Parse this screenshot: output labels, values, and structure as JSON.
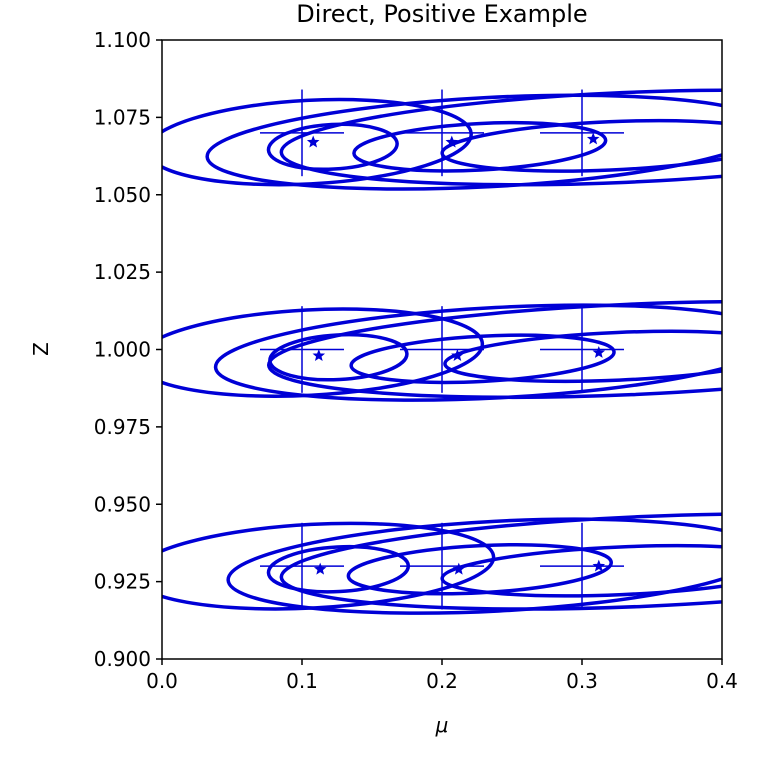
{
  "chart_data": {
    "type": "scatter",
    "title": "Direct, Positive Example",
    "xlabel": "μ",
    "ylabel": "Z",
    "xlim": [
      0.0,
      0.4
    ],
    "ylim": [
      0.9,
      1.1
    ],
    "xticks": [
      "0.0",
      "0.1",
      "0.2",
      "0.3",
      "0.4"
    ],
    "xtick_values": [
      0.0,
      0.1,
      0.2,
      0.3,
      0.4
    ],
    "yticks": [
      "0.900",
      "0.925",
      "0.950",
      "0.975",
      "1.000",
      "1.025",
      "1.050",
      "1.075",
      "1.100"
    ],
    "ytick_values": [
      0.9,
      0.925,
      0.95,
      0.975,
      1.0,
      1.025,
      1.05,
      1.075,
      1.1
    ],
    "grid": false,
    "color": "#0000d6",
    "crosshairs": {
      "centers": [
        {
          "x": 0.1,
          "y": 1.07
        },
        {
          "x": 0.2,
          "y": 1.07
        },
        {
          "x": 0.3,
          "y": 1.07
        },
        {
          "x": 0.1,
          "y": 1.0
        },
        {
          "x": 0.2,
          "y": 1.0
        },
        {
          "x": 0.3,
          "y": 1.0
        },
        {
          "x": 0.1,
          "y": 0.93
        },
        {
          "x": 0.2,
          "y": 0.93
        },
        {
          "x": 0.3,
          "y": 0.93
        }
      ],
      "x_half_width": 0.03,
      "y_half_height": 0.014
    },
    "estimates": [
      {
        "x": 0.108,
        "y": 1.067
      },
      {
        "x": 0.207,
        "y": 1.067
      },
      {
        "x": 0.308,
        "y": 1.068
      },
      {
        "x": 0.112,
        "y": 0.998
      },
      {
        "x": 0.211,
        "y": 0.998
      },
      {
        "x": 0.312,
        "y": 0.999
      },
      {
        "x": 0.113,
        "y": 0.929
      },
      {
        "x": 0.212,
        "y": 0.929
      },
      {
        "x": 0.312,
        "y": 0.93
      }
    ],
    "confidence_ellipses": [
      {
        "cx": 0.122,
        "cy": 1.0655,
        "rx": 0.046,
        "ry": 0.0072,
        "angle_deg": -3
      },
      {
        "cx": 0.105,
        "cy": 1.067,
        "rx": 0.116,
        "ry": 0.0135,
        "angle_deg": -3
      },
      {
        "cx": 0.227,
        "cy": 1.0655,
        "rx": 0.09,
        "ry": 0.0075,
        "angle_deg": -3
      },
      {
        "cx": 0.233,
        "cy": 1.067,
        "rx": 0.201,
        "ry": 0.0144,
        "angle_deg": -3
      },
      {
        "cx": 0.32,
        "cy": 1.0658,
        "rx": 0.12,
        "ry": 0.0078,
        "angle_deg": -2.5
      },
      {
        "cx": 0.33,
        "cy": 1.0685,
        "rx": 0.245,
        "ry": 0.0145,
        "angle_deg": -2.5
      },
      {
        "cx": 0.126,
        "cy": 0.9975,
        "rx": 0.049,
        "ry": 0.0072,
        "angle_deg": -3
      },
      {
        "cx": 0.105,
        "cy": 0.999,
        "rx": 0.124,
        "ry": 0.0138,
        "angle_deg": -3
      },
      {
        "cx": 0.229,
        "cy": 0.997,
        "rx": 0.094,
        "ry": 0.0073,
        "angle_deg": -3
      },
      {
        "cx": 0.24,
        "cy": 0.999,
        "rx": 0.202,
        "ry": 0.0146,
        "angle_deg": -3
      },
      {
        "cx": 0.326,
        "cy": 0.9978,
        "rx": 0.124,
        "ry": 0.0077,
        "angle_deg": -2.5
      },
      {
        "cx": 0.334,
        "cy": 1.0,
        "rx": 0.258,
        "ry": 0.0146,
        "angle_deg": -2.5
      },
      {
        "cx": 0.126,
        "cy": 0.929,
        "rx": 0.05,
        "ry": 0.0072,
        "angle_deg": -3
      },
      {
        "cx": 0.108,
        "cy": 0.93,
        "rx": 0.129,
        "ry": 0.0135,
        "angle_deg": -3
      },
      {
        "cx": 0.227,
        "cy": 0.929,
        "rx": 0.094,
        "ry": 0.0076,
        "angle_deg": -3
      },
      {
        "cx": 0.239,
        "cy": 0.93,
        "rx": 0.192,
        "ry": 0.0145,
        "angle_deg": -3
      },
      {
        "cx": 0.328,
        "cy": 0.9285,
        "rx": 0.128,
        "ry": 0.0077,
        "angle_deg": -2.5
      },
      {
        "cx": 0.343,
        "cy": 0.9315,
        "rx": 0.258,
        "ry": 0.0145,
        "angle_deg": -2.5
      }
    ]
  }
}
